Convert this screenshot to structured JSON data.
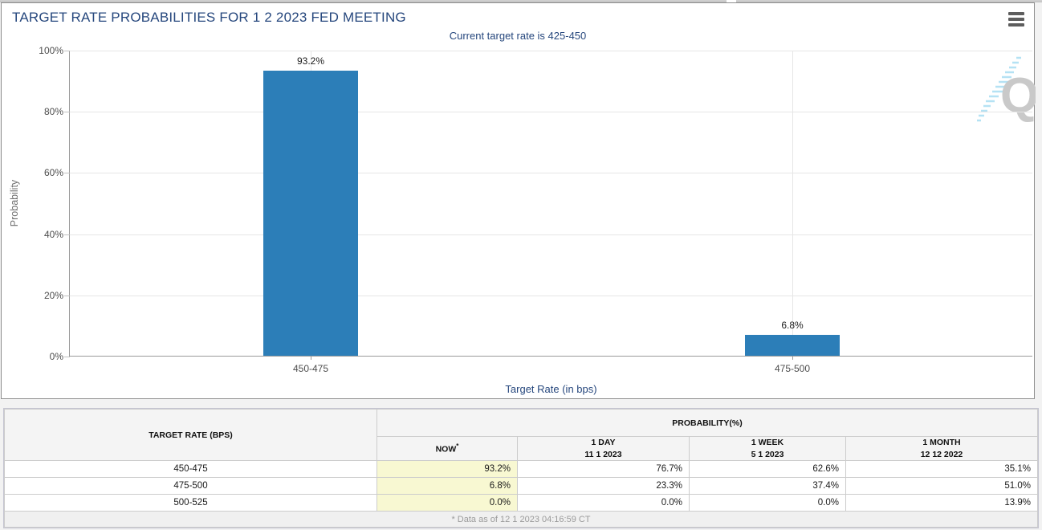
{
  "chart": {
    "title": "TARGET RATE PROBABILITIES FOR 1 2 2023 FED MEETING",
    "subtitle": "Current target rate is 425-450",
    "y_axis_title": "Probability",
    "x_axis_title": "Target Rate (in bps)",
    "watermark_letter": "Q"
  },
  "chart_data": {
    "type": "bar",
    "categories": [
      "450-475",
      "475-500"
    ],
    "values": [
      93.2,
      6.8
    ],
    "value_labels": [
      "93.2%",
      "6.8%"
    ],
    "title": "TARGET RATE PROBABILITIES FOR 1 2 2023 FED MEETING",
    "subtitle": "Current target rate is 425-450",
    "xlabel": "Target Rate (in bps)",
    "ylabel": "Probability",
    "ylim": [
      0,
      100
    ],
    "y_tick_labels": [
      "100%",
      "80%",
      "60%",
      "40%",
      "20%",
      "0%"
    ],
    "grid": true,
    "legend": false,
    "bar_color": "#2c7eb8"
  },
  "table": {
    "rate_header": "TARGET RATE (BPS)",
    "group_header": "PROBABILITY(%)",
    "columns": [
      {
        "label": "NOW",
        "sup": "*",
        "sub": ""
      },
      {
        "label": "1 DAY",
        "sub": "11 1 2023"
      },
      {
        "label": "1 WEEK",
        "sub": "5 1 2023"
      },
      {
        "label": "1 MONTH",
        "sub": "12 12 2022"
      }
    ],
    "rows": [
      {
        "rate": "450-475",
        "values": [
          "93.2%",
          "76.7%",
          "62.6%",
          "35.1%"
        ]
      },
      {
        "rate": "475-500",
        "values": [
          "6.8%",
          "23.3%",
          "37.4%",
          "51.0%"
        ]
      },
      {
        "rate": "500-525",
        "values": [
          "0.0%",
          "0.0%",
          "0.0%",
          "13.9%"
        ]
      }
    ],
    "footnote": "* Data as of 12 1 2023 04:16:59 CT"
  },
  "colors": {
    "bar_blue": "#2c7eb8",
    "title_navy": "#26477d",
    "now_column_yellow": "#f8f8d2",
    "grid_gray": "#e6e6e6",
    "axis_gray": "#9a9a9a",
    "footer_text_gray": "#9b9b9b"
  }
}
